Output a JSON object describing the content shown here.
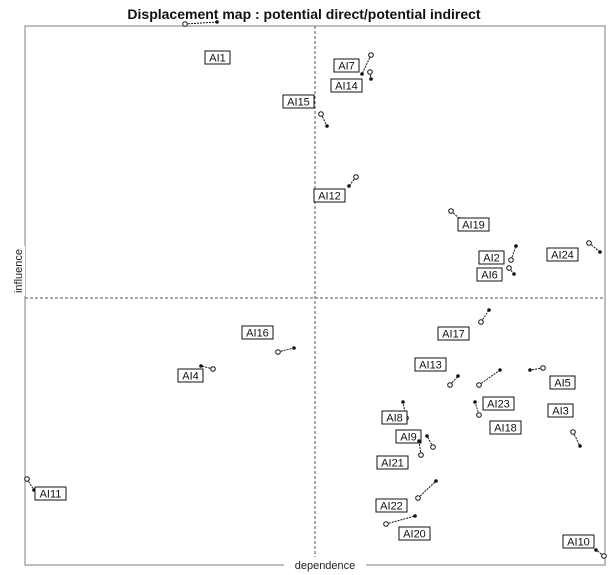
{
  "chart_data": {
    "type": "scatter",
    "title": "Displacement map :  potential direct/potential indirect",
    "xlabel": "dependence",
    "ylabel": "influence",
    "grid": false,
    "quadrant_lines": true,
    "colors": {
      "frame": "#7f7f7f",
      "axis_line": "#555555",
      "point": "#111111",
      "label_border": "#111111"
    },
    "points": [
      {
        "label": "AI1",
        "from": [
          185,
          24
        ],
        "to": [
          217,
          22
        ]
      },
      {
        "label": "AI7",
        "from": [
          371,
          55
        ],
        "to": [
          362,
          74
        ]
      },
      {
        "label": "AI14",
        "from": [
          370,
          72
        ],
        "to": [
          371,
          79
        ]
      },
      {
        "label": "AI15",
        "from": [
          321,
          114
        ],
        "to": [
          327,
          126
        ]
      },
      {
        "label": "AI12",
        "from": [
          356,
          177
        ],
        "to": [
          349,
          186
        ]
      },
      {
        "label": "AI19",
        "from": [
          451,
          211
        ],
        "to": [
          460,
          219
        ]
      },
      {
        "label": "AI2",
        "from": [
          511,
          260
        ],
        "to": [
          516,
          246
        ]
      },
      {
        "label": "AI6",
        "from": [
          509,
          268
        ],
        "to": [
          514,
          274
        ]
      },
      {
        "label": "AI24",
        "from": [
          589,
          243
        ],
        "to": [
          600,
          252
        ]
      },
      {
        "label": "AI17",
        "from": [
          481,
          322
        ],
        "to": [
          489,
          310
        ]
      },
      {
        "label": "AI16",
        "from": [
          278,
          352
        ],
        "to": [
          294,
          348
        ]
      },
      {
        "label": "AI4",
        "from": [
          213,
          369
        ],
        "to": [
          201,
          366
        ]
      },
      {
        "label": "AI13",
        "from": [
          450,
          385
        ],
        "to": [
          458,
          376
        ]
      },
      {
        "label": "AI5",
        "from": [
          543,
          368
        ],
        "to": [
          530,
          370
        ]
      },
      {
        "label": "AI23",
        "from": [
          479,
          385
        ],
        "to": [
          500,
          370
        ]
      },
      {
        "label": "AI3",
        "from": [
          573,
          432
        ],
        "to": [
          580,
          446
        ]
      },
      {
        "label": "AI18",
        "from": [
          479,
          415
        ],
        "to": [
          475,
          402
        ]
      },
      {
        "label": "AI8",
        "from": [
          406,
          418
        ],
        "to": [
          403,
          402
        ]
      },
      {
        "label": "AI9",
        "from": [
          433,
          447
        ],
        "to": [
          427,
          436
        ]
      },
      {
        "label": "AI21",
        "from": [
          421,
          455
        ],
        "to": [
          419,
          441
        ]
      },
      {
        "label": "AI11",
        "from": [
          27,
          479
        ],
        "to": [
          34,
          490
        ]
      },
      {
        "label": "AI22",
        "from": [
          418,
          498
        ],
        "to": [
          436,
          481
        ]
      },
      {
        "label": "AI20",
        "from": [
          386,
          524
        ],
        "to": [
          415,
          516
        ]
      },
      {
        "label": "AI10",
        "from": [
          604,
          556
        ],
        "to": [
          596,
          550
        ]
      }
    ]
  }
}
